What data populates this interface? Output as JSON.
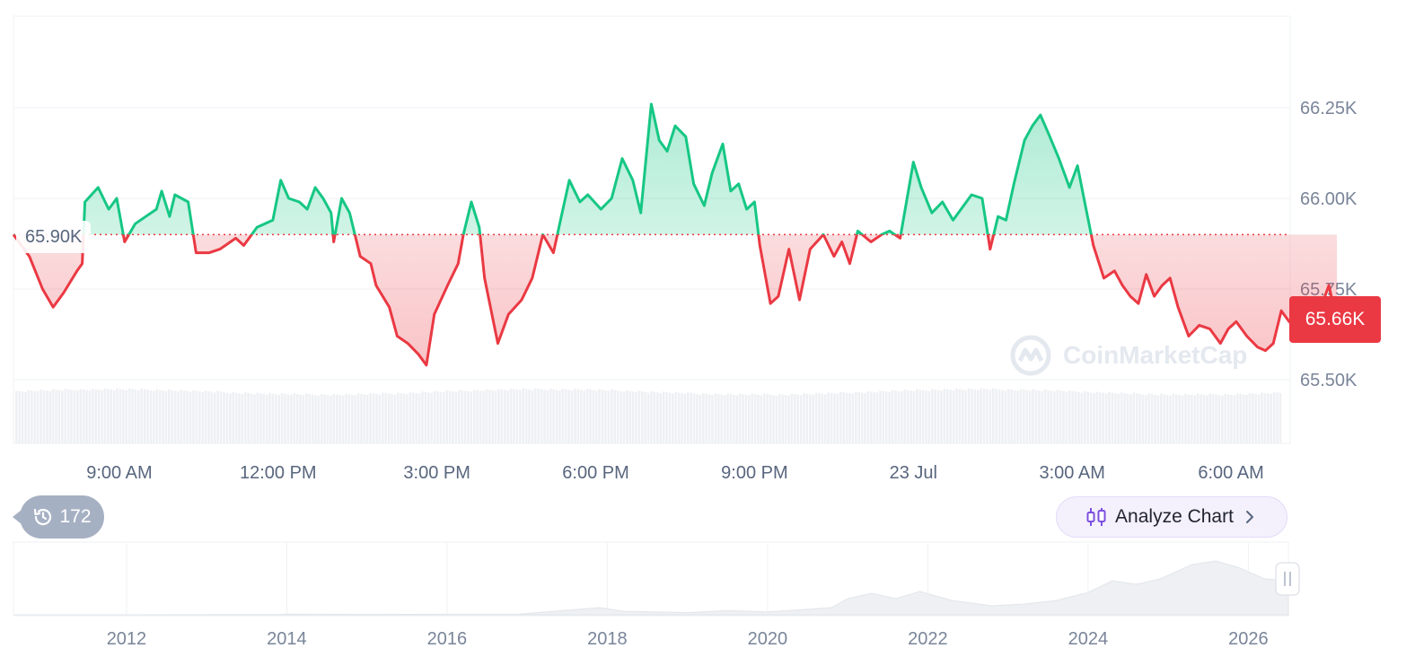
{
  "chart_data": {
    "type": "area",
    "baseline": 65900,
    "baseline_label": "65.90K",
    "current_price_label": "65.66K",
    "y_ticks": [
      {
        "value": 66250,
        "label": "66.25K"
      },
      {
        "value": 66000,
        "label": "66.00K"
      },
      {
        "value": 65750,
        "label": "65.75K"
      },
      {
        "value": 65500,
        "label": "65.50K"
      }
    ],
    "ylim": [
      65500,
      66250
    ],
    "x_ticks": [
      "9:00 AM",
      "12:00 PM",
      "3:00 PM",
      "6:00 PM",
      "9:00 PM",
      "23 Jul",
      "3:00 AM",
      "6:00 AM"
    ],
    "x_tick_hours": [
      2,
      5,
      8,
      11,
      14,
      17,
      20,
      23
    ],
    "x_range_hours": [
      0,
      24
    ],
    "series": [
      {
        "up_color": "#16c784",
        "down_color": "#ea3943",
        "points": [
          [
            0.0,
            65900
          ],
          [
            0.3,
            65840
          ],
          [
            0.55,
            65750
          ],
          [
            0.75,
            65700
          ],
          [
            0.95,
            65740
          ],
          [
            1.2,
            65800
          ],
          [
            1.3,
            65820
          ],
          [
            1.35,
            65990
          ],
          [
            1.6,
            66030
          ],
          [
            1.8,
            65970
          ],
          [
            1.95,
            66000
          ],
          [
            2.1,
            65880
          ],
          [
            2.3,
            65930
          ],
          [
            2.5,
            65950
          ],
          [
            2.7,
            65970
          ],
          [
            2.8,
            66020
          ],
          [
            2.95,
            65950
          ],
          [
            3.05,
            66010
          ],
          [
            3.3,
            65990
          ],
          [
            3.45,
            65850
          ],
          [
            3.7,
            65850
          ],
          [
            3.9,
            65860
          ],
          [
            4.2,
            65890
          ],
          [
            4.35,
            65870
          ],
          [
            4.6,
            65920
          ],
          [
            4.9,
            65940
          ],
          [
            5.05,
            66050
          ],
          [
            5.2,
            66000
          ],
          [
            5.4,
            65990
          ],
          [
            5.55,
            65970
          ],
          [
            5.7,
            66030
          ],
          [
            5.85,
            66000
          ],
          [
            6.0,
            65960
          ],
          [
            6.05,
            65880
          ],
          [
            6.2,
            66000
          ],
          [
            6.35,
            65960
          ],
          [
            6.55,
            65840
          ],
          [
            6.75,
            65820
          ],
          [
            6.85,
            65760
          ],
          [
            7.1,
            65700
          ],
          [
            7.25,
            65620
          ],
          [
            7.45,
            65600
          ],
          [
            7.65,
            65570
          ],
          [
            7.8,
            65540
          ],
          [
            7.95,
            65680
          ],
          [
            8.2,
            65760
          ],
          [
            8.4,
            65820
          ],
          [
            8.5,
            65900
          ],
          [
            8.65,
            65990
          ],
          [
            8.8,
            65920
          ],
          [
            8.9,
            65780
          ],
          [
            9.15,
            65600
          ],
          [
            9.35,
            65680
          ],
          [
            9.6,
            65720
          ],
          [
            9.8,
            65780
          ],
          [
            10.0,
            65900
          ],
          [
            10.2,
            65850
          ],
          [
            10.35,
            65950
          ],
          [
            10.5,
            66050
          ],
          [
            10.7,
            65990
          ],
          [
            10.85,
            66010
          ],
          [
            11.1,
            65970
          ],
          [
            11.3,
            66000
          ],
          [
            11.5,
            66110
          ],
          [
            11.7,
            66050
          ],
          [
            11.85,
            65960
          ],
          [
            12.05,
            66260
          ],
          [
            12.2,
            66160
          ],
          [
            12.35,
            66130
          ],
          [
            12.5,
            66200
          ],
          [
            12.7,
            66170
          ],
          [
            12.85,
            66040
          ],
          [
            13.05,
            65980
          ],
          [
            13.2,
            66070
          ],
          [
            13.4,
            66150
          ],
          [
            13.55,
            66020
          ],
          [
            13.7,
            66040
          ],
          [
            13.85,
            65970
          ],
          [
            14.0,
            65990
          ],
          [
            14.1,
            65870
          ],
          [
            14.3,
            65710
          ],
          [
            14.45,
            65730
          ],
          [
            14.65,
            65860
          ],
          [
            14.85,
            65720
          ],
          [
            15.05,
            65860
          ],
          [
            15.3,
            65900
          ],
          [
            15.5,
            65840
          ],
          [
            15.65,
            65880
          ],
          [
            15.8,
            65820
          ],
          [
            15.95,
            65910
          ],
          [
            16.2,
            65880
          ],
          [
            16.4,
            65900
          ],
          [
            16.55,
            65910
          ],
          [
            16.75,
            65890
          ],
          [
            17.0,
            66100
          ],
          [
            17.15,
            66030
          ],
          [
            17.35,
            65960
          ],
          [
            17.55,
            65990
          ],
          [
            17.75,
            65940
          ],
          [
            17.95,
            65980
          ],
          [
            18.1,
            66010
          ],
          [
            18.3,
            66000
          ],
          [
            18.45,
            65860
          ],
          [
            18.6,
            65950
          ],
          [
            18.75,
            65940
          ],
          [
            18.9,
            66040
          ],
          [
            19.1,
            66160
          ],
          [
            19.25,
            66200
          ],
          [
            19.4,
            66230
          ],
          [
            19.55,
            66180
          ],
          [
            19.75,
            66110
          ],
          [
            19.95,
            66030
          ],
          [
            20.1,
            66090
          ],
          [
            20.25,
            65980
          ],
          [
            20.4,
            65870
          ],
          [
            20.6,
            65780
          ],
          [
            20.8,
            65800
          ],
          [
            20.95,
            65760
          ],
          [
            21.1,
            65730
          ],
          [
            21.25,
            65710
          ],
          [
            21.4,
            65790
          ],
          [
            21.55,
            65730
          ],
          [
            21.7,
            65760
          ],
          [
            21.85,
            65780
          ],
          [
            22.0,
            65700
          ],
          [
            22.2,
            65620
          ],
          [
            22.4,
            65650
          ],
          [
            22.6,
            65640
          ],
          [
            22.8,
            65600
          ],
          [
            22.95,
            65640
          ],
          [
            23.1,
            65660
          ],
          [
            23.3,
            65620
          ],
          [
            23.5,
            65590
          ],
          [
            23.65,
            65580
          ],
          [
            23.8,
            65600
          ],
          [
            23.95,
            65690
          ],
          [
            24.1,
            65660
          ],
          [
            24.25,
            65640
          ],
          [
            24.4,
            65620
          ],
          [
            24.55,
            65660
          ],
          [
            24.7,
            65700
          ],
          [
            24.85,
            65760
          ],
          [
            25.0,
            65660
          ]
        ]
      }
    ],
    "navigator": {
      "x_ticks": [
        "2012",
        "2014",
        "2016",
        "2018",
        "2020",
        "2022",
        "2024",
        "2026"
      ],
      "x_tick_years": [
        2012,
        2014,
        2016,
        2018,
        2020,
        2022,
        2024,
        2026
      ],
      "x_range_years": [
        2010.6,
        2026.5
      ],
      "points": [
        [
          2010.6,
          0
        ],
        [
          2012.0,
          0
        ],
        [
          2013.9,
          0.01
        ],
        [
          2014.0,
          0.02
        ],
        [
          2015.0,
          0.01
        ],
        [
          2016.9,
          0.02
        ],
        [
          2017.9,
          0.2
        ],
        [
          2018.2,
          0.1
        ],
        [
          2019.0,
          0.06
        ],
        [
          2019.5,
          0.12
        ],
        [
          2020.0,
          0.08
        ],
        [
          2020.8,
          0.2
        ],
        [
          2021.0,
          0.45
        ],
        [
          2021.3,
          0.6
        ],
        [
          2021.6,
          0.45
        ],
        [
          2021.9,
          0.65
        ],
        [
          2022.3,
          0.4
        ],
        [
          2022.8,
          0.25
        ],
        [
          2023.2,
          0.3
        ],
        [
          2023.6,
          0.4
        ],
        [
          2024.0,
          0.62
        ],
        [
          2024.3,
          0.95
        ],
        [
          2024.6,
          0.85
        ],
        [
          2024.9,
          1.0
        ],
        [
          2025.3,
          1.4
        ],
        [
          2025.6,
          1.5
        ],
        [
          2025.9,
          1.3
        ],
        [
          2026.2,
          1.0
        ],
        [
          2026.5,
          0.95
        ]
      ]
    }
  },
  "ui": {
    "history_count": "172",
    "analyze_label": "Analyze Chart",
    "watermark": "CoinMarketCap"
  },
  "colors": {
    "up": "#16c784",
    "down": "#ea3943",
    "grid": "#eff2f5",
    "accent_purple": "#7d4fe0"
  }
}
